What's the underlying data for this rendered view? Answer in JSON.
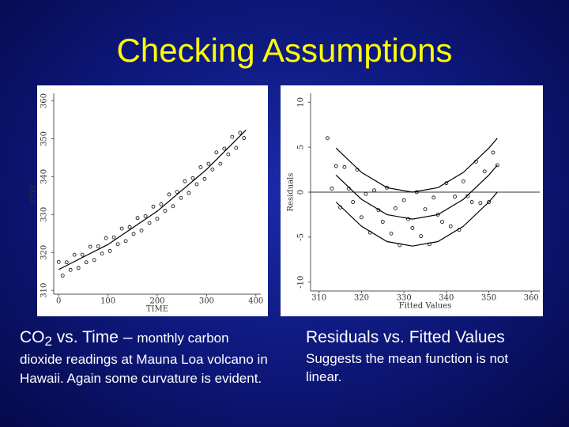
{
  "slide": {
    "title": "Checking Assumptions",
    "left_caption": {
      "head_a": "CO",
      "head_sub": "2",
      "head_b": " vs. Time – ",
      "body": "monthly carbon dioxide readings at Mauna Loa volcano in Hawaii.  Again some curvature is evident."
    },
    "right_caption": {
      "head": "Residuals vs. Fitted Values",
      "body": "Suggests the mean function is not linear."
    }
  },
  "chart_data": [
    {
      "type": "scatter",
      "x_label": "TIME",
      "y_label": "CO2",
      "xlim": [
        -10,
        410
      ],
      "ylim": [
        309,
        362
      ],
      "xticks": [
        0,
        100,
        200,
        300,
        400
      ],
      "yticks": [
        310,
        320,
        330,
        340,
        350,
        360
      ],
      "series": [
        {
          "color": "#000000",
          "mode": "points",
          "x": [
            0,
            8,
            16,
            24,
            32,
            40,
            48,
            56,
            64,
            72,
            80,
            88,
            96,
            104,
            112,
            120,
            128,
            136,
            144,
            152,
            160,
            168,
            176,
            184,
            192,
            200,
            208,
            216,
            224,
            232,
            240,
            248,
            256,
            264,
            272,
            280,
            288,
            296,
            304,
            312,
            320,
            328,
            336,
            344,
            352,
            360,
            368,
            376
          ],
          "values": [
            317.5,
            313.9,
            317.4,
            315.4,
            319.4,
            315.9,
            319.4,
            317.4,
            321.5,
            318.0,
            321.6,
            319.7,
            323.8,
            320.4,
            324.0,
            322.2,
            326.3,
            323.0,
            326.7,
            324.9,
            329.1,
            325.8,
            329.6,
            327.8,
            332.1,
            328.9,
            332.7,
            331.0,
            335.3,
            332.2,
            336.0,
            334.4,
            338.8,
            335.7,
            339.6,
            338.0,
            342.5,
            339.4,
            343.4,
            341.9,
            346.4,
            343.4,
            347.4,
            345.9,
            350.5,
            347.6,
            351.6,
            350.2
          ]
        },
        {
          "color": "#000000",
          "mode": "line",
          "x": [
            0,
            100,
            200,
            300,
            380
          ],
          "values": [
            315.5,
            322.1,
            330.9,
            341.9,
            352.3
          ]
        }
      ]
    },
    {
      "type": "scatter",
      "x_label": "Fitted Values",
      "y_label": "Residuals",
      "xlim": [
        308,
        362
      ],
      "ylim": [
        -11,
        11
      ],
      "xticks": [
        310,
        320,
        330,
        340,
        350,
        360
      ],
      "yticks": [
        -10,
        -5,
        0,
        5,
        10
      ],
      "reference_line": 0,
      "series": [
        {
          "color": "#000000",
          "mode": "points",
          "x": [
            312,
            313,
            314,
            315,
            316,
            317,
            318,
            319,
            320,
            321,
            322,
            323,
            324,
            325,
            326,
            327,
            328,
            329,
            330,
            331,
            332,
            333,
            334,
            335,
            336,
            337,
            338,
            339,
            340,
            341,
            342,
            343,
            344,
            345,
            346,
            347,
            348,
            349,
            350,
            351,
            352
          ],
          "values": [
            6.0,
            0.4,
            2.9,
            -1.7,
            2.8,
            0.4,
            -1.1,
            2.5,
            -2.8,
            -0.2,
            -4.5,
            0.2,
            -2.0,
            -3.3,
            0.5,
            -4.6,
            -1.8,
            -5.9,
            -0.9,
            -3.0,
            -4.0,
            0.0,
            -4.9,
            -1.9,
            -5.8,
            -0.6,
            -2.5,
            -3.3,
            1.0,
            -3.8,
            -0.5,
            -4.2,
            1.2,
            -0.46,
            -1.1,
            3.4,
            -1.2,
            2.3,
            -1.1,
            4.4,
            3.0
          ]
        },
        {
          "color": "#000000",
          "mode": "line",
          "x": [
            314,
            320,
            326,
            332,
            338,
            344,
            350,
            352
          ],
          "values": [
            1.9,
            -0.8,
            -2.5,
            -3,
            -2.5,
            -0.8,
            1.9,
            3
          ]
        },
        {
          "color": "#000000",
          "mode": "line",
          "x": [
            314,
            320,
            326,
            332,
            338,
            344,
            350,
            352
          ],
          "values": [
            4.9,
            2.2,
            0.5,
            0,
            0.5,
            2.2,
            4.9,
            6
          ]
        },
        {
          "color": "#000000",
          "mode": "line",
          "x": [
            314,
            320,
            326,
            332,
            338,
            344,
            350,
            352
          ],
          "values": [
            -1.1,
            -3.8,
            -5.5,
            -6,
            -5.5,
            -3.8,
            -1.1,
            0
          ]
        }
      ]
    }
  ]
}
